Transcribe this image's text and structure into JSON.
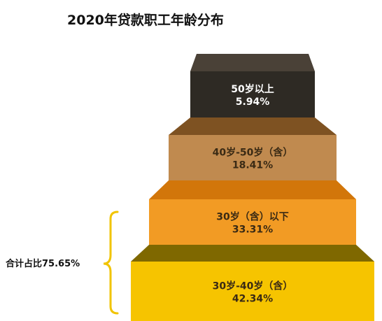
{
  "chart_data": {
    "type": "bar",
    "title": "2020年贷款职工年龄分布",
    "layout": "stacked-pyramid",
    "categories": [
      "50岁以上",
      "40岁-50岁（含）",
      "30岁（含）以下",
      "30岁-40岁（含）"
    ],
    "values": [
      5.94,
      18.41,
      33.31,
      42.34
    ],
    "value_labels": [
      "5.94%",
      "18.41%",
      "33.31%",
      "42.34%"
    ],
    "unit": "%",
    "colors": {
      "front": [
        "#2e2a24",
        "#c08a4f",
        "#f29b24",
        "#f6c400"
      ],
      "top": [
        "#4a4137",
        "#7e5222",
        "#d2760a",
        "#7f6800"
      ]
    },
    "annotation": {
      "label": "合计占比75.65%",
      "bracket_color": "#f1c400"
    }
  }
}
